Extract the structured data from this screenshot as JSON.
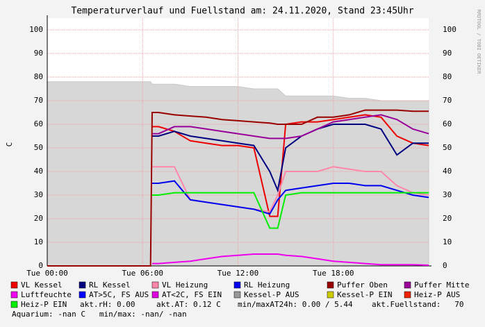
{
  "chart_data": {
    "type": "line",
    "title": "Temperaturverlauf und Fuellstand am: 24.11.2020, Stand 23:45Uhr",
    "y_label": "C",
    "watermark": "RRDTOOL / TOBI OETIKER",
    "grid": true,
    "x": [
      0,
      2,
      4,
      6,
      6.5,
      6.6,
      7,
      8,
      9,
      10,
      11,
      12,
      13,
      14,
      14.5,
      15,
      16,
      17,
      18,
      19,
      20,
      21,
      22,
      23,
      24
    ],
    "xlim": [
      0,
      24
    ],
    "xticks": [
      {
        "value": 0,
        "label": "Tue 00:00"
      },
      {
        "value": 6,
        "label": "Tue 06:00"
      },
      {
        "value": 12,
        "label": "Tue 12:00"
      },
      {
        "value": 18,
        "label": "Tue 18:00"
      }
    ],
    "ylim": [
      0,
      105
    ],
    "yticks": [
      0,
      10,
      20,
      30,
      40,
      50,
      60,
      70,
      80,
      90,
      100
    ],
    "series": [
      {
        "name": "VL Kessel",
        "color": "#ee0000",
        "values": [
          null,
          null,
          null,
          null,
          null,
          59,
          59,
          57,
          53,
          52,
          51,
          51,
          50,
          21,
          21,
          60,
          61,
          61,
          62,
          63,
          64,
          63,
          55,
          52,
          51
        ]
      },
      {
        "name": "RL Kessel",
        "color": "#000080",
        "values": [
          null,
          null,
          null,
          null,
          null,
          55,
          55,
          57,
          55,
          54,
          53,
          52,
          51,
          40,
          32,
          50,
          55,
          58,
          60,
          60,
          60,
          58,
          47,
          52,
          52
        ]
      },
      {
        "name": "VL Heizung",
        "color": "#ff88aa",
        "values": [
          null,
          null,
          null,
          null,
          null,
          42,
          42,
          42,
          28,
          27,
          26,
          25,
          24,
          23,
          30,
          40,
          40,
          40,
          42,
          41,
          40,
          40,
          34,
          31,
          30
        ]
      },
      {
        "name": "RL Heizung",
        "color": "#0000ee",
        "values": [
          null,
          null,
          null,
          null,
          null,
          35,
          35,
          36,
          28,
          27,
          26,
          25,
          24,
          22,
          28,
          32,
          33,
          34,
          35,
          35,
          34,
          34,
          32,
          30,
          29
        ]
      },
      {
        "name": "Puffer Oben",
        "color": "#990000",
        "values": [
          0,
          0,
          0,
          0,
          0,
          65,
          65,
          64,
          63.5,
          63,
          62,
          61.5,
          61,
          60.5,
          60,
          60,
          60,
          63,
          63,
          64,
          66,
          66,
          66,
          65.5,
          65.5
        ]
      },
      {
        "name": "Puffer Mitte",
        "color": "#990099",
        "values": [
          null,
          null,
          null,
          null,
          null,
          56,
          56,
          59,
          59,
          58,
          57,
          56,
          55,
          54,
          54,
          54,
          55,
          58,
          61,
          62,
          63,
          64,
          62,
          58,
          56
        ]
      },
      {
        "name": "Luftfeuchte",
        "color": "#ee00ee",
        "values": [
          null,
          null,
          null,
          null,
          null,
          1,
          1,
          1.5,
          2,
          3,
          4,
          4.5,
          5,
          5,
          5,
          4.5,
          4,
          3,
          2,
          1.5,
          1,
          0.5,
          0.5,
          0.5,
          0.3
        ]
      },
      {
        "name": "AT>5C, FS AUS",
        "color": "#0000ff"
      },
      {
        "name": "AT<2C, FS EIN",
        "color": "#dd00dd"
      },
      {
        "name": "Kessel-P AUS",
        "color": "#999999",
        "area": true,
        "values": [
          78,
          78,
          78,
          78,
          78,
          77,
          77,
          77,
          76,
          76,
          76,
          76,
          75,
          75,
          75,
          72,
          72,
          72,
          72,
          71,
          71,
          70,
          70,
          70,
          70
        ]
      },
      {
        "name": "Kessel-P EIN",
        "color": "#cccc00"
      },
      {
        "name": "Heiz-P AUS",
        "color": "#ee2200"
      },
      {
        "name": "Heiz-P EIN",
        "color": "#00ee00",
        "values": [
          null,
          null,
          null,
          null,
          null,
          30,
          30,
          31,
          31,
          31,
          31,
          31,
          31,
          16,
          16,
          30,
          31,
          31,
          31,
          31,
          31,
          31,
          31,
          31,
          31
        ]
      }
    ],
    "status": [
      "akt.rH: 0.00",
      "akt.AT: 0.12 C",
      "min/maxAT24h: 0.00 / 5.44",
      "akt.Fuellstand:   70"
    ],
    "aquarium": "Aquarium: -nan C   min/max: -nan/ -nan"
  }
}
